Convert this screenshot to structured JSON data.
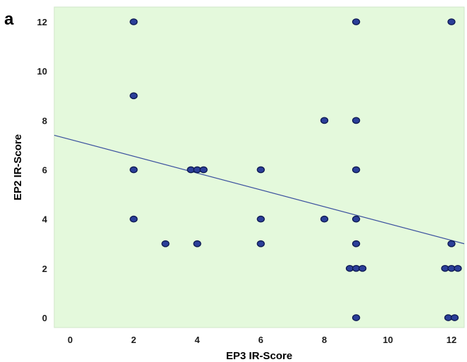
{
  "panel_label": "a",
  "chart_data": {
    "type": "scatter",
    "title": "",
    "xlabel": "EP3 IR-Score",
    "ylabel": "EP2 IR-Score",
    "xlim": [
      -0.5,
      12.4
    ],
    "ylim": [
      -0.4,
      12.6
    ],
    "xticks": [
      "0",
      "2",
      "4",
      "6",
      "8",
      "10",
      "12"
    ],
    "yticks": [
      "0",
      "2",
      "4",
      "6",
      "8",
      "10",
      "12"
    ],
    "grid": false,
    "colors": {
      "plot_background": "#e4f9dc",
      "point_fill": "#2b3f99",
      "point_edge": "#0c1850",
      "fit_line": "#3a4f9e"
    },
    "points": [
      {
        "x": 2,
        "y": 12
      },
      {
        "x": 9,
        "y": 12
      },
      {
        "x": 12,
        "y": 12
      },
      {
        "x": 2,
        "y": 9
      },
      {
        "x": 8,
        "y": 8
      },
      {
        "x": 9,
        "y": 8
      },
      {
        "x": 2,
        "y": 6
      },
      {
        "x": 3.8,
        "y": 6
      },
      {
        "x": 4,
        "y": 6
      },
      {
        "x": 4.2,
        "y": 6
      },
      {
        "x": 6,
        "y": 6
      },
      {
        "x": 9,
        "y": 6
      },
      {
        "x": 2,
        "y": 4
      },
      {
        "x": 6,
        "y": 4
      },
      {
        "x": 8,
        "y": 4
      },
      {
        "x": 9,
        "y": 4
      },
      {
        "x": 3,
        "y": 3
      },
      {
        "x": 4,
        "y": 3
      },
      {
        "x": 6,
        "y": 3
      },
      {
        "x": 9,
        "y": 3
      },
      {
        "x": 12,
        "y": 3
      },
      {
        "x": 8.8,
        "y": 2
      },
      {
        "x": 9,
        "y": 2
      },
      {
        "x": 9.2,
        "y": 2
      },
      {
        "x": 11.8,
        "y": 2
      },
      {
        "x": 12,
        "y": 2
      },
      {
        "x": 12.2,
        "y": 2
      },
      {
        "x": 9,
        "y": 0
      },
      {
        "x": 11.9,
        "y": 0
      },
      {
        "x": 12.1,
        "y": 0
      }
    ],
    "fit_line": {
      "x": [
        -0.5,
        12.4
      ],
      "y": [
        7.4,
        3.0
      ]
    }
  }
}
